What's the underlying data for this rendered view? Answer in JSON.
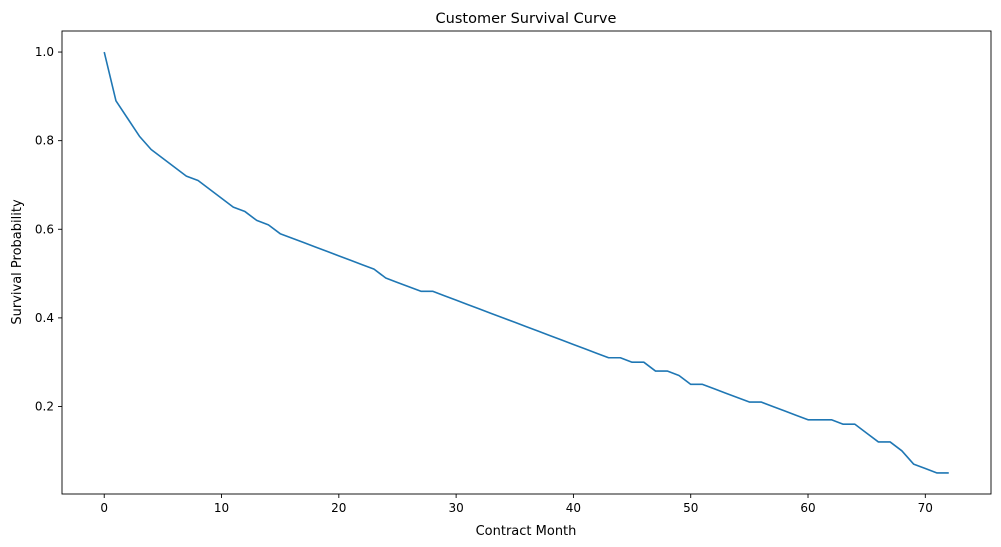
{
  "chart_data": {
    "type": "line",
    "title": "Customer Survival Curve",
    "xlabel": "Contract Month",
    "ylabel": "Survival Probability",
    "xlim": [
      -3.6,
      75.6
    ],
    "ylim": [
      0.0025,
      1.0475
    ],
    "xticks": [
      0,
      10,
      20,
      30,
      40,
      50,
      60,
      70
    ],
    "yticks": [
      0.2,
      0.4,
      0.6,
      0.8,
      1.0
    ],
    "ytick_labels": [
      "0.2",
      "0.4",
      "0.6",
      "0.8",
      "1.0"
    ],
    "grid": false,
    "legend": "none",
    "line_color": "#1f77b4",
    "series": [
      {
        "x": [
          0,
          1,
          2,
          3,
          4,
          5,
          6,
          7,
          8,
          9,
          10,
          11,
          12,
          13,
          14,
          15,
          16,
          17,
          18,
          19,
          20,
          21,
          22,
          23,
          24,
          25,
          26,
          27,
          28,
          29,
          30,
          31,
          32,
          33,
          34,
          35,
          36,
          37,
          38,
          39,
          40,
          41,
          42,
          43,
          44,
          45,
          46,
          47,
          48,
          49,
          50,
          51,
          52,
          53,
          54,
          55,
          56,
          57,
          58,
          59,
          60,
          61,
          62,
          63,
          64,
          65,
          66,
          67,
          68,
          69,
          70,
          71,
          72
        ],
        "values": [
          1.0,
          0.89,
          0.85,
          0.81,
          0.78,
          0.76,
          0.74,
          0.72,
          0.71,
          0.69,
          0.67,
          0.65,
          0.64,
          0.62,
          0.61,
          0.59,
          0.58,
          0.57,
          0.56,
          0.55,
          0.54,
          0.53,
          0.52,
          0.51,
          0.49,
          0.48,
          0.47,
          0.46,
          0.46,
          0.45,
          0.44,
          0.43,
          0.42,
          0.41,
          0.4,
          0.39,
          0.38,
          0.37,
          0.36,
          0.35,
          0.34,
          0.33,
          0.32,
          0.31,
          0.31,
          0.3,
          0.3,
          0.28,
          0.28,
          0.27,
          0.25,
          0.25,
          0.24,
          0.23,
          0.22,
          0.21,
          0.21,
          0.2,
          0.19,
          0.18,
          0.17,
          0.17,
          0.17,
          0.16,
          0.16,
          0.14,
          0.12,
          0.12,
          0.1,
          0.07,
          0.06,
          0.05,
          0.05
        ]
      }
    ]
  }
}
